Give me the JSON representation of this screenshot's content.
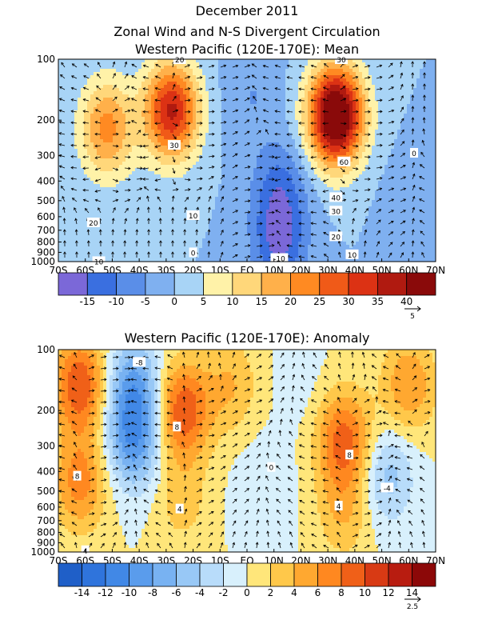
{
  "header": {
    "line1": "December 2011",
    "line2": "Zonal Wind and N-S Divergent Circulation",
    "line3": "Western Pacific (120E-170E): Mean"
  },
  "chart_data": [
    {
      "type": "heatmap",
      "title": "Western Pacific (120E-170E): Mean",
      "x_ticks": [
        "70S",
        "60S",
        "50S",
        "40S",
        "30S",
        "20S",
        "10S",
        "EQ",
        "10N",
        "20N",
        "30N",
        "40N",
        "50N",
        "60N",
        "70N"
      ],
      "x_values": [
        -70,
        -60,
        -50,
        -40,
        -30,
        -20,
        -10,
        0,
        10,
        20,
        30,
        40,
        50,
        60,
        70
      ],
      "y_ticks": [
        "100",
        "200",
        "300",
        "400",
        "500",
        "600",
        "700",
        "800",
        "900",
        "1000"
      ],
      "y_values": [
        100,
        200,
        300,
        400,
        500,
        600,
        700,
        800,
        900,
        1000
      ],
      "y_scale": "log-pressure",
      "xlim": [
        -70,
        70
      ],
      "ylim": [
        1000,
        100
      ],
      "colorbar": {
        "levels": [
          -20,
          -15,
          -10,
          -5,
          0,
          5,
          10,
          15,
          20,
          25,
          30,
          35,
          40,
          45
        ],
        "labels": [
          "-15",
          "-10",
          "-5",
          "0",
          "5",
          "10",
          "15",
          "20",
          "25",
          "30",
          "35",
          "40"
        ],
        "colors": [
          "#7b68d8",
          "#3a6fe0",
          "#5a8ee8",
          "#7fb0f0",
          "#a8d4f6",
          "#fff2a8",
          "#ffd77a",
          "#ffb04a",
          "#ff8a22",
          "#f05a18",
          "#dc3214",
          "#b01a10",
          "#8a0a0a"
        ]
      },
      "vector_ref": "5",
      "centers": [
        {
          "x": -52,
          "p": 220,
          "value": 22
        },
        {
          "x": -28,
          "p": 180,
          "value": 36
        },
        {
          "x": 33,
          "p": 190,
          "value": 52
        },
        {
          "x": 12,
          "p": 450,
          "value": -12
        },
        {
          "x": 12,
          "p": 850,
          "value": -14
        },
        {
          "x": 2,
          "p": 150,
          "value": -5
        },
        {
          "x": 62,
          "p": 550,
          "value": -4
        }
      ],
      "contour_labels": [
        {
          "x": -25,
          "p": 100,
          "text": "20"
        },
        {
          "x": -27,
          "p": 265,
          "text": "30"
        },
        {
          "x": -20,
          "p": 590,
          "text": "10"
        },
        {
          "x": -57,
          "p": 640,
          "text": "20"
        },
        {
          "x": -20,
          "p": 900,
          "text": "0"
        },
        {
          "x": -55,
          "p": 995,
          "text": "10"
        },
        {
          "x": 35,
          "p": 100,
          "text": "30"
        },
        {
          "x": 36,
          "p": 320,
          "text": "60"
        },
        {
          "x": 33,
          "p": 480,
          "text": "40"
        },
        {
          "x": 33,
          "p": 560,
          "text": "30"
        },
        {
          "x": 33,
          "p": 750,
          "text": "20"
        },
        {
          "x": 39,
          "p": 920,
          "text": "10"
        },
        {
          "x": 12,
          "p": 960,
          "text": "-10"
        },
        {
          "x": 62,
          "p": 290,
          "text": "0"
        }
      ]
    },
    {
      "type": "heatmap",
      "title": "Western Pacific (120E-170E): Anomaly",
      "x_ticks": [
        "70S",
        "60S",
        "50S",
        "40S",
        "30S",
        "20S",
        "10S",
        "EQ",
        "10N",
        "20N",
        "30N",
        "40N",
        "50N",
        "60N",
        "70N"
      ],
      "x_values": [
        -70,
        -60,
        -50,
        -40,
        -30,
        -20,
        -10,
        0,
        10,
        20,
        30,
        40,
        50,
        60,
        70
      ],
      "y_ticks": [
        "100",
        "200",
        "300",
        "400",
        "500",
        "600",
        "700",
        "800",
        "900",
        "1000"
      ],
      "y_values": [
        100,
        200,
        300,
        400,
        500,
        600,
        700,
        800,
        900,
        1000
      ],
      "y_scale": "log-pressure",
      "xlim": [
        -70,
        70
      ],
      "ylim": [
        1000,
        100
      ],
      "colorbar": {
        "levels": [
          -16,
          -14,
          -12,
          -10,
          -8,
          -6,
          -4,
          -2,
          0,
          2,
          4,
          6,
          8,
          10,
          12,
          14,
          16
        ],
        "labels": [
          "-14",
          "-12",
          "-10",
          "-8",
          "-6",
          "-4",
          "-2",
          "0",
          "2",
          "4",
          "6",
          "8",
          "10",
          "12",
          "14"
        ],
        "colors": [
          "#1f5fc8",
          "#2f74dc",
          "#4188e6",
          "#5a9cec",
          "#78b2f2",
          "#98c8f6",
          "#b8dcfa",
          "#d8f0fc",
          "#ffe67a",
          "#ffc84a",
          "#ffa830",
          "#ff8820",
          "#f06018",
          "#d83a14",
          "#b81c10",
          "#8c0808"
        ]
      },
      "vector_ref": "2.5",
      "centers": [
        {
          "x": -62,
          "p": 150,
          "value": 10
        },
        {
          "x": -62,
          "p": 450,
          "value": 7
        },
        {
          "x": -42,
          "p": 280,
          "value": -9
        },
        {
          "x": -42,
          "p": 150,
          "value": -8
        },
        {
          "x": -24,
          "p": 200,
          "value": 10
        },
        {
          "x": -24,
          "p": 550,
          "value": 3
        },
        {
          "x": 6,
          "p": 500,
          "value": -2
        },
        {
          "x": 36,
          "p": 280,
          "value": 9
        },
        {
          "x": 36,
          "p": 620,
          "value": 4
        },
        {
          "x": 52,
          "p": 420,
          "value": -5
        },
        {
          "x": 60,
          "p": 150,
          "value": 6
        },
        {
          "x": -6,
          "p": 150,
          "value": 4
        },
        {
          "x": 20,
          "p": 150,
          "value": -1
        }
      ],
      "contour_labels": [
        {
          "x": -40,
          "p": 115,
          "text": "-8"
        },
        {
          "x": -26,
          "p": 240,
          "text": "8"
        },
        {
          "x": -63,
          "p": 420,
          "text": "8"
        },
        {
          "x": -25,
          "p": 610,
          "text": "4"
        },
        {
          "x": 9,
          "p": 380,
          "text": "0"
        },
        {
          "x": 38,
          "p": 330,
          "text": "8"
        },
        {
          "x": 34,
          "p": 590,
          "text": "4"
        },
        {
          "x": 52,
          "p": 480,
          "text": "-4"
        },
        {
          "x": -60,
          "p": 980,
          "text": "4"
        }
      ]
    }
  ]
}
